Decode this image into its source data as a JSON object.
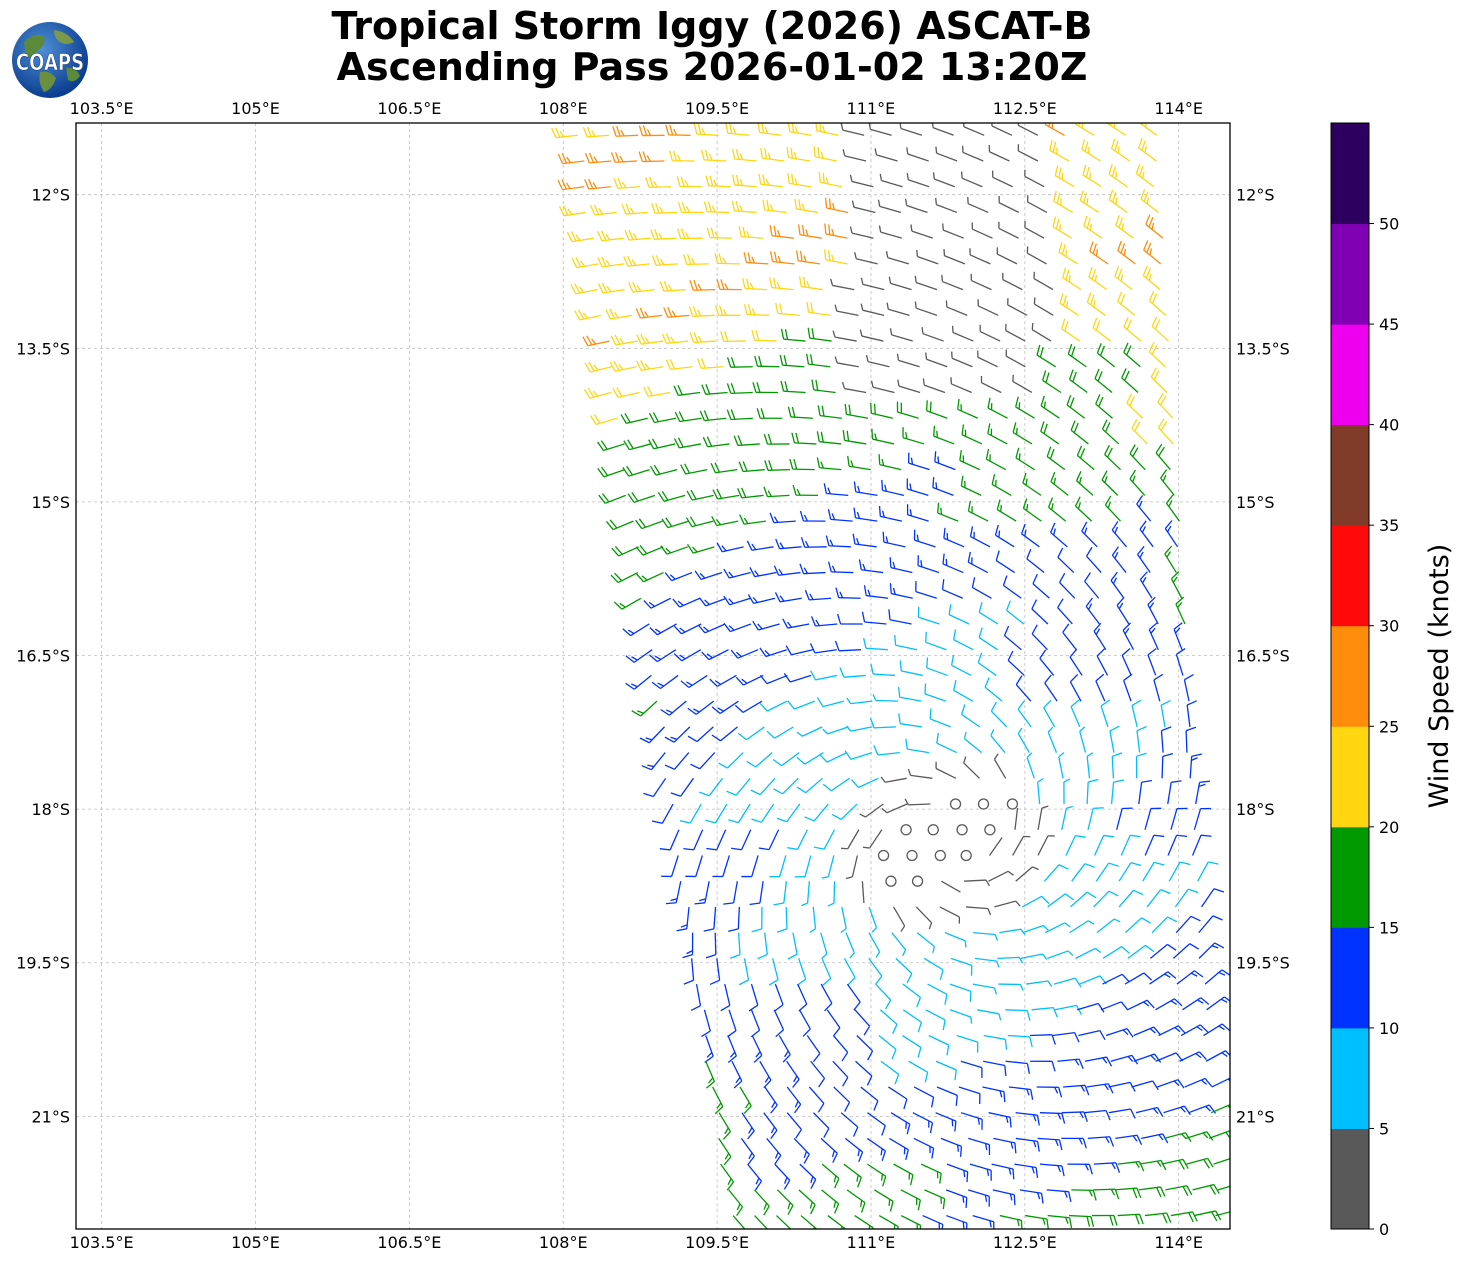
{
  "title": {
    "line1": "Tropical Storm Iggy (2026) ASCAT-B",
    "line2": "Ascending Pass 2026-01-02 13:20Z"
  },
  "logo": {
    "text": "COAPS",
    "icon": "globe-logo-icon"
  },
  "map": {
    "lon_range": [
      103.25,
      114.5
    ],
    "lat_range": [
      -22.1,
      -11.3
    ],
    "lon_ticks": [
      {
        "value": 103.5,
        "label": "103.5°E"
      },
      {
        "value": 105,
        "label": "105°E"
      },
      {
        "value": 106.5,
        "label": "106.5°E"
      },
      {
        "value": 108,
        "label": "108°E"
      },
      {
        "value": 109.5,
        "label": "109.5°E"
      },
      {
        "value": 111,
        "label": "111°E"
      },
      {
        "value": 112.5,
        "label": "112.5°E"
      },
      {
        "value": 114,
        "label": "114°E"
      }
    ],
    "lat_ticks": [
      {
        "value": -12,
        "label": "12°S"
      },
      {
        "value": -13.5,
        "label": "13.5°S"
      },
      {
        "value": -15,
        "label": "15°S"
      },
      {
        "value": -16.5,
        "label": "16.5°S"
      },
      {
        "value": -18,
        "label": "18°S"
      },
      {
        "value": -19.5,
        "label": "19.5°S"
      },
      {
        "value": -21,
        "label": "21°S"
      }
    ],
    "grid": true,
    "center": {
      "lon": 111.75,
      "lat": -18.35
    },
    "swath": {
      "northwest": {
        "lon": 108.0,
        "lat": -11.3
      },
      "southwest": {
        "lon": 109.55,
        "lat": -22.1
      },
      "northeast": {
        "lon": 113.9,
        "lat": -11.3
      },
      "southeast": {
        "lon": 114.5,
        "lat": -22.1
      }
    }
  },
  "colorbar": {
    "label": "Wind Speed (knots)",
    "bins": [
      {
        "min": 0,
        "max": 5,
        "color": "#595959"
      },
      {
        "min": 5,
        "max": 10,
        "color": "#00bfff"
      },
      {
        "min": 10,
        "max": 15,
        "color": "#0033ff"
      },
      {
        "min": 15,
        "max": 20,
        "color": "#009900"
      },
      {
        "min": 20,
        "max": 25,
        "color": "#ffd610"
      },
      {
        "min": 25,
        "max": 30,
        "color": "#ff8c0a"
      },
      {
        "min": 30,
        "max": 35,
        "color": "#ff0a0a"
      },
      {
        "min": 35,
        "max": 40,
        "color": "#803c28"
      },
      {
        "min": 40,
        "max": 45,
        "color": "#ee00ee"
      },
      {
        "min": 45,
        "max": 50,
        "color": "#8000b3"
      },
      {
        "min": 50,
        "max": 55,
        "color": "#2d0060"
      }
    ],
    "ticks": [
      {
        "value": 0,
        "label": "0"
      },
      {
        "value": 5,
        "label": "5"
      },
      {
        "value": 10,
        "label": "10"
      },
      {
        "value": 15,
        "label": "15"
      },
      {
        "value": 20,
        "label": "20"
      },
      {
        "value": 25,
        "label": "25"
      },
      {
        "value": 30,
        "label": "30"
      },
      {
        "value": 35,
        "label": "35"
      },
      {
        "value": 40,
        "label": "40"
      },
      {
        "value": 45,
        "label": "45"
      },
      {
        "value": 50,
        "label": "50"
      }
    ]
  }
}
